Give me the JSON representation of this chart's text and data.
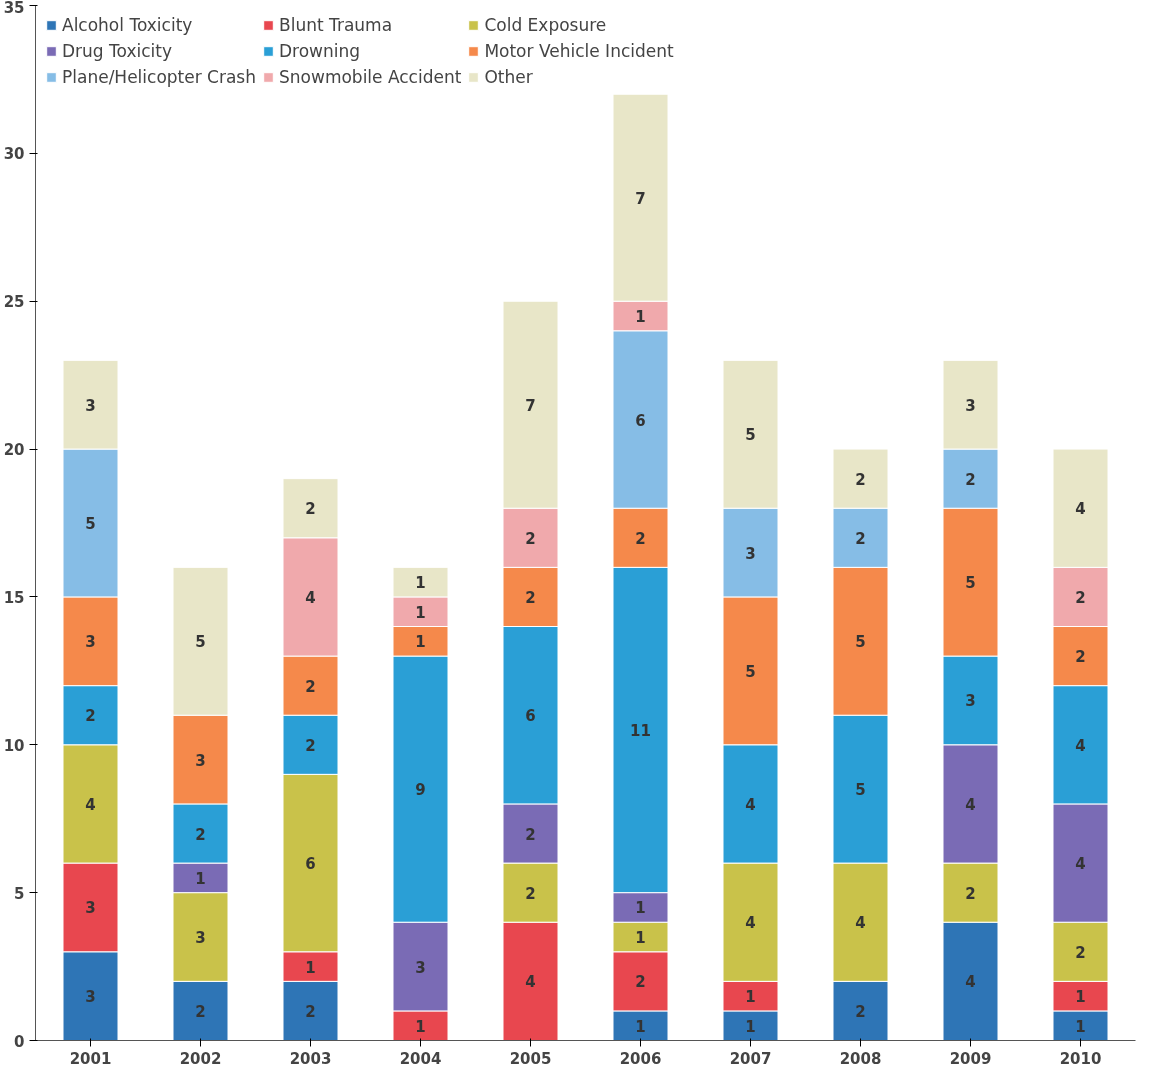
{
  "chart_data": {
    "type": "bar",
    "stacked": true,
    "categories": [
      "2001",
      "2002",
      "2003",
      "2004",
      "2005",
      "2006",
      "2007",
      "2008",
      "2009",
      "2010"
    ],
    "series": [
      {
        "name": "Alcohol Toxicity",
        "color": "#2e75b6",
        "values": [
          3,
          2,
          2,
          null,
          null,
          1,
          1,
          2,
          4,
          1
        ]
      },
      {
        "name": "Blunt Trauma",
        "color": "#e8474f",
        "values": [
          3,
          null,
          1,
          1,
          4,
          2,
          1,
          null,
          null,
          1
        ]
      },
      {
        "name": "Cold Exposure",
        "color": "#c9c24a",
        "values": [
          4,
          3,
          6,
          null,
          2,
          1,
          4,
          4,
          2,
          2
        ]
      },
      {
        "name": "Drug Toxicity",
        "color": "#7a6bb5",
        "values": [
          null,
          1,
          null,
          3,
          2,
          1,
          null,
          null,
          4,
          4
        ]
      },
      {
        "name": "Drowning",
        "color": "#2a9fd6",
        "values": [
          2,
          2,
          2,
          9,
          6,
          11,
          4,
          5,
          3,
          4
        ]
      },
      {
        "name": "Motor Vehicle Incident",
        "color": "#f5894b",
        "values": [
          3,
          3,
          2,
          1,
          2,
          2,
          5,
          5,
          5,
          2
        ]
      },
      {
        "name": "Plane/Helicopter Crash",
        "color": "#86bde6",
        "values": [
          5,
          null,
          null,
          null,
          null,
          6,
          3,
          2,
          2,
          null
        ]
      },
      {
        "name": "Snowmobile Accident",
        "color": "#f0a9ac",
        "values": [
          null,
          null,
          4,
          1,
          2,
          1,
          null,
          null,
          null,
          2
        ]
      },
      {
        "name": "Other",
        "color": "#e8e6c8",
        "values": [
          3,
          5,
          2,
          1,
          7,
          7,
          5,
          2,
          3,
          4
        ]
      }
    ],
    "ylim": [
      0,
      35
    ],
    "yticks": [
      0,
      5,
      10,
      15,
      20,
      25,
      30,
      35
    ],
    "grid": false,
    "legend": "top",
    "data_labels": true
  }
}
